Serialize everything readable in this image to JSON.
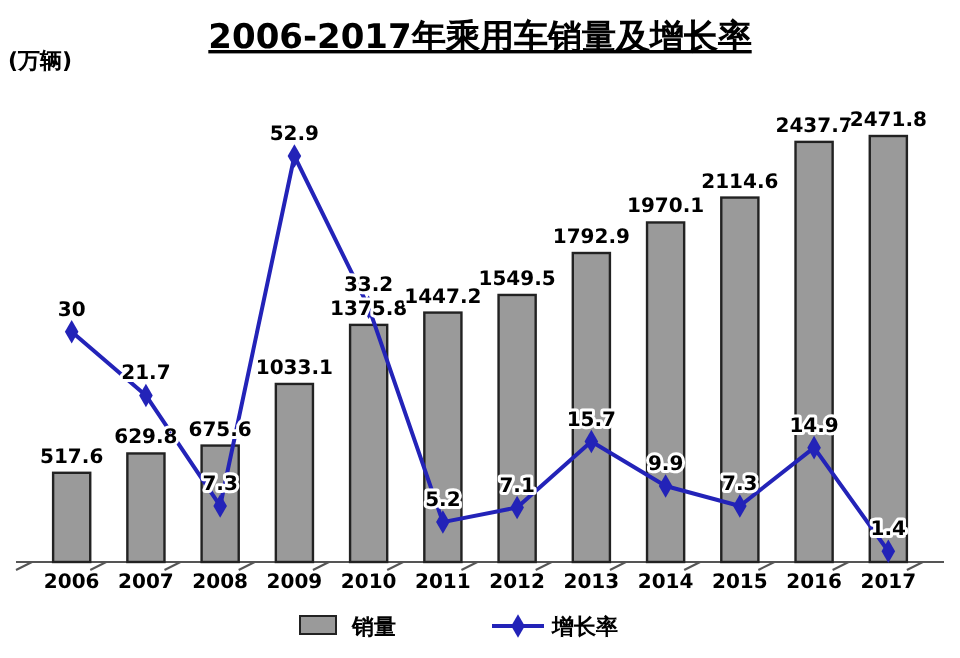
{
  "chart_data": {
    "type": "bar",
    "title": "2006-2017年乘用车销量及增长率",
    "ylabel": "(万辆)",
    "categories": [
      "2006",
      "2007",
      "2008",
      "2009",
      "2010",
      "2011",
      "2012",
      "2013",
      "2014",
      "2015",
      "2016",
      "2017"
    ],
    "series": [
      {
        "name": "销量",
        "color": "#9a9a9a",
        "values": [
          517.6,
          629.8,
          675.6,
          1033.1,
          1375.8,
          1447.2,
          1549.5,
          1792.9,
          1970.1,
          2114.6,
          2437.7,
          2471.8
        ]
      },
      {
        "name": "增长率",
        "type": "line",
        "axis": "y2",
        "color": "#2323b8",
        "marker": "diamond",
        "values": [
          30,
          21.7,
          7.3,
          52.9,
          33.2,
          5.2,
          7.1,
          15.7,
          9.9,
          7.3,
          14.9,
          1.4
        ]
      }
    ],
    "tick_labels": "x",
    "data_labels": true,
    "legend": "bottom"
  }
}
